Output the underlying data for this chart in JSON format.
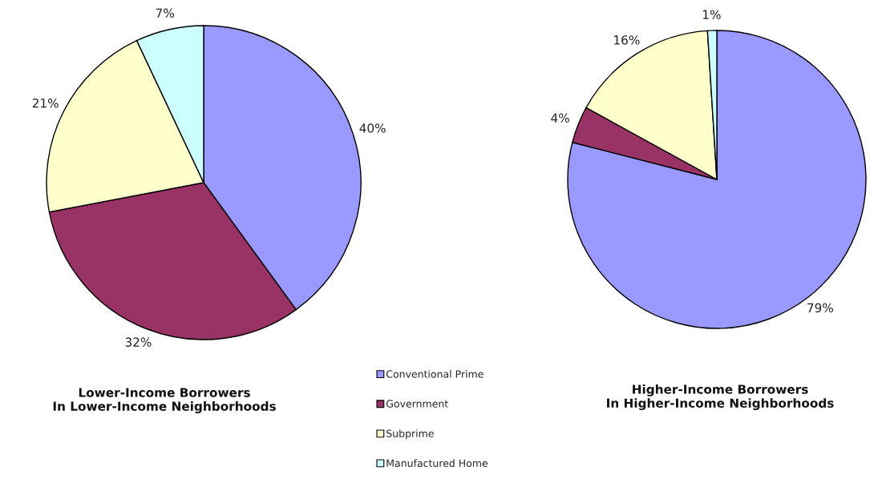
{
  "chart_data": [
    {
      "type": "pie",
      "title": "Lower-Income Borrowers\nIn Lower-Income Neighborhoods",
      "categories": [
        "Conventional Prime",
        "Government",
        "Subprime",
        "Manufactured Home"
      ],
      "values": [
        40,
        32,
        21,
        7
      ],
      "colors": [
        "#9999ff",
        "#993366",
        "#ffffcc",
        "#ccffff"
      ],
      "value_labels": [
        "40%",
        "32%",
        "21%",
        "7%"
      ],
      "legend": "right"
    },
    {
      "type": "pie",
      "title": "Higher-Income Borrowers\nIn Higher-Income Neighborhoods",
      "categories": [
        null,
        null,
        null,
        null
      ],
      "values": [
        79,
        4,
        16,
        1
      ],
      "colors": [
        "#9999ff",
        "#993366",
        "#ffffcc",
        "#ccffff"
      ],
      "value_labels": [
        "79%",
        "4%",
        "16%",
        "1%"
      ]
    }
  ]
}
